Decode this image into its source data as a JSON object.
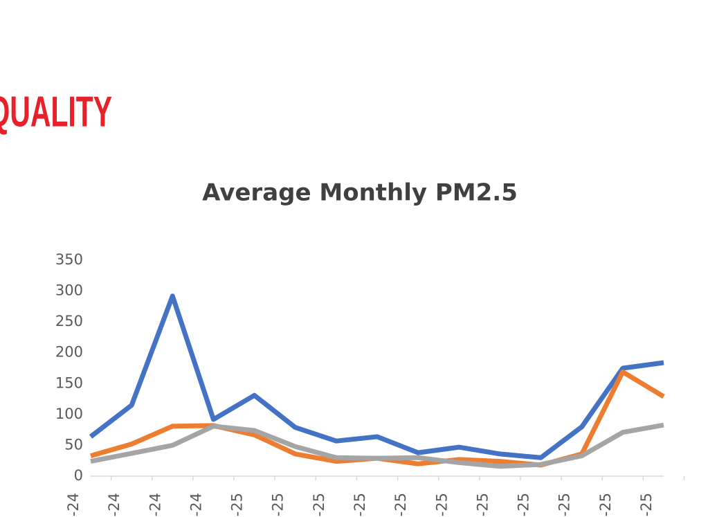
{
  "header": {
    "title": "QUALITY"
  },
  "chart_data": {
    "type": "line",
    "title": "Average Monthly PM2.5",
    "categories": [
      "-24",
      "-24",
      "-24",
      "-24",
      "-25",
      "-25",
      "-25",
      "-25",
      "-25",
      "-25",
      "-25",
      "-25",
      "-25",
      "-25",
      "-25"
    ],
    "series": [
      {
        "color": "#4472c4",
        "values": [
          64,
          115,
          292,
          92,
          131,
          79,
          57,
          64,
          38,
          47,
          36,
          30,
          80,
          175,
          184
        ]
      },
      {
        "color": "#ed7d31",
        "values": [
          33,
          52,
          81,
          82,
          67,
          36,
          24,
          29,
          20,
          27,
          24,
          18,
          36,
          169,
          129
        ]
      },
      {
        "color": "#a5a5a5",
        "values": [
          24,
          37,
          50,
          81,
          74,
          48,
          30,
          29,
          30,
          22,
          16,
          19,
          33,
          71,
          83
        ]
      }
    ],
    "ylim": [
      0,
      350
    ],
    "yticks": [
      0,
      50,
      100,
      150,
      200,
      250,
      300,
      350
    ]
  }
}
